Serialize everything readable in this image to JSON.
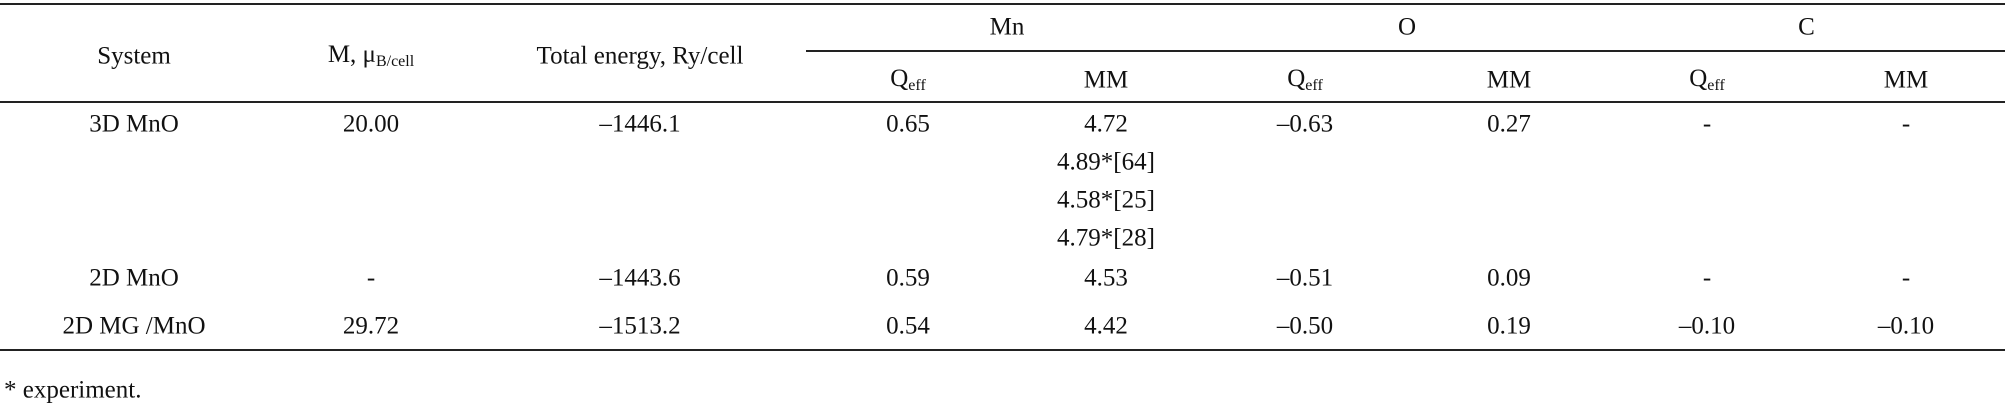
{
  "table": {
    "header": {
      "system": "System",
      "m": {
        "text": "M, μ",
        "sub": "B/cell"
      },
      "total_energy": "Total energy, Ry/cell",
      "groups": [
        "Mn",
        "O",
        "C"
      ],
      "subcolumns": [
        {
          "text": "Q",
          "sub": "eff"
        },
        {
          "text": "MM"
        },
        {
          "text": "Q",
          "sub": "eff"
        },
        {
          "text": "MM"
        },
        {
          "text": "Q",
          "sub": "eff"
        },
        {
          "text": "MM"
        }
      ]
    },
    "rows": [
      [
        "3D MnO",
        "20.00",
        "–1446.1",
        "0.65",
        [
          "4.72",
          "4.89*[64]",
          "4.58*[25]",
          "4.79*[28]"
        ],
        "–0.63",
        "0.27",
        "-",
        "-"
      ],
      [
        "2D MnO",
        "-",
        "–1443.6",
        "0.59",
        "4.53",
        "–0.51",
        "0.09",
        "-",
        "-"
      ],
      [
        "2D MG /MnO",
        "29.72",
        "–1513.2",
        "0.54",
        "4.42",
        "–0.50",
        "0.19",
        "–0.10",
        "–0.10"
      ]
    ]
  },
  "footnote": "* experiment."
}
